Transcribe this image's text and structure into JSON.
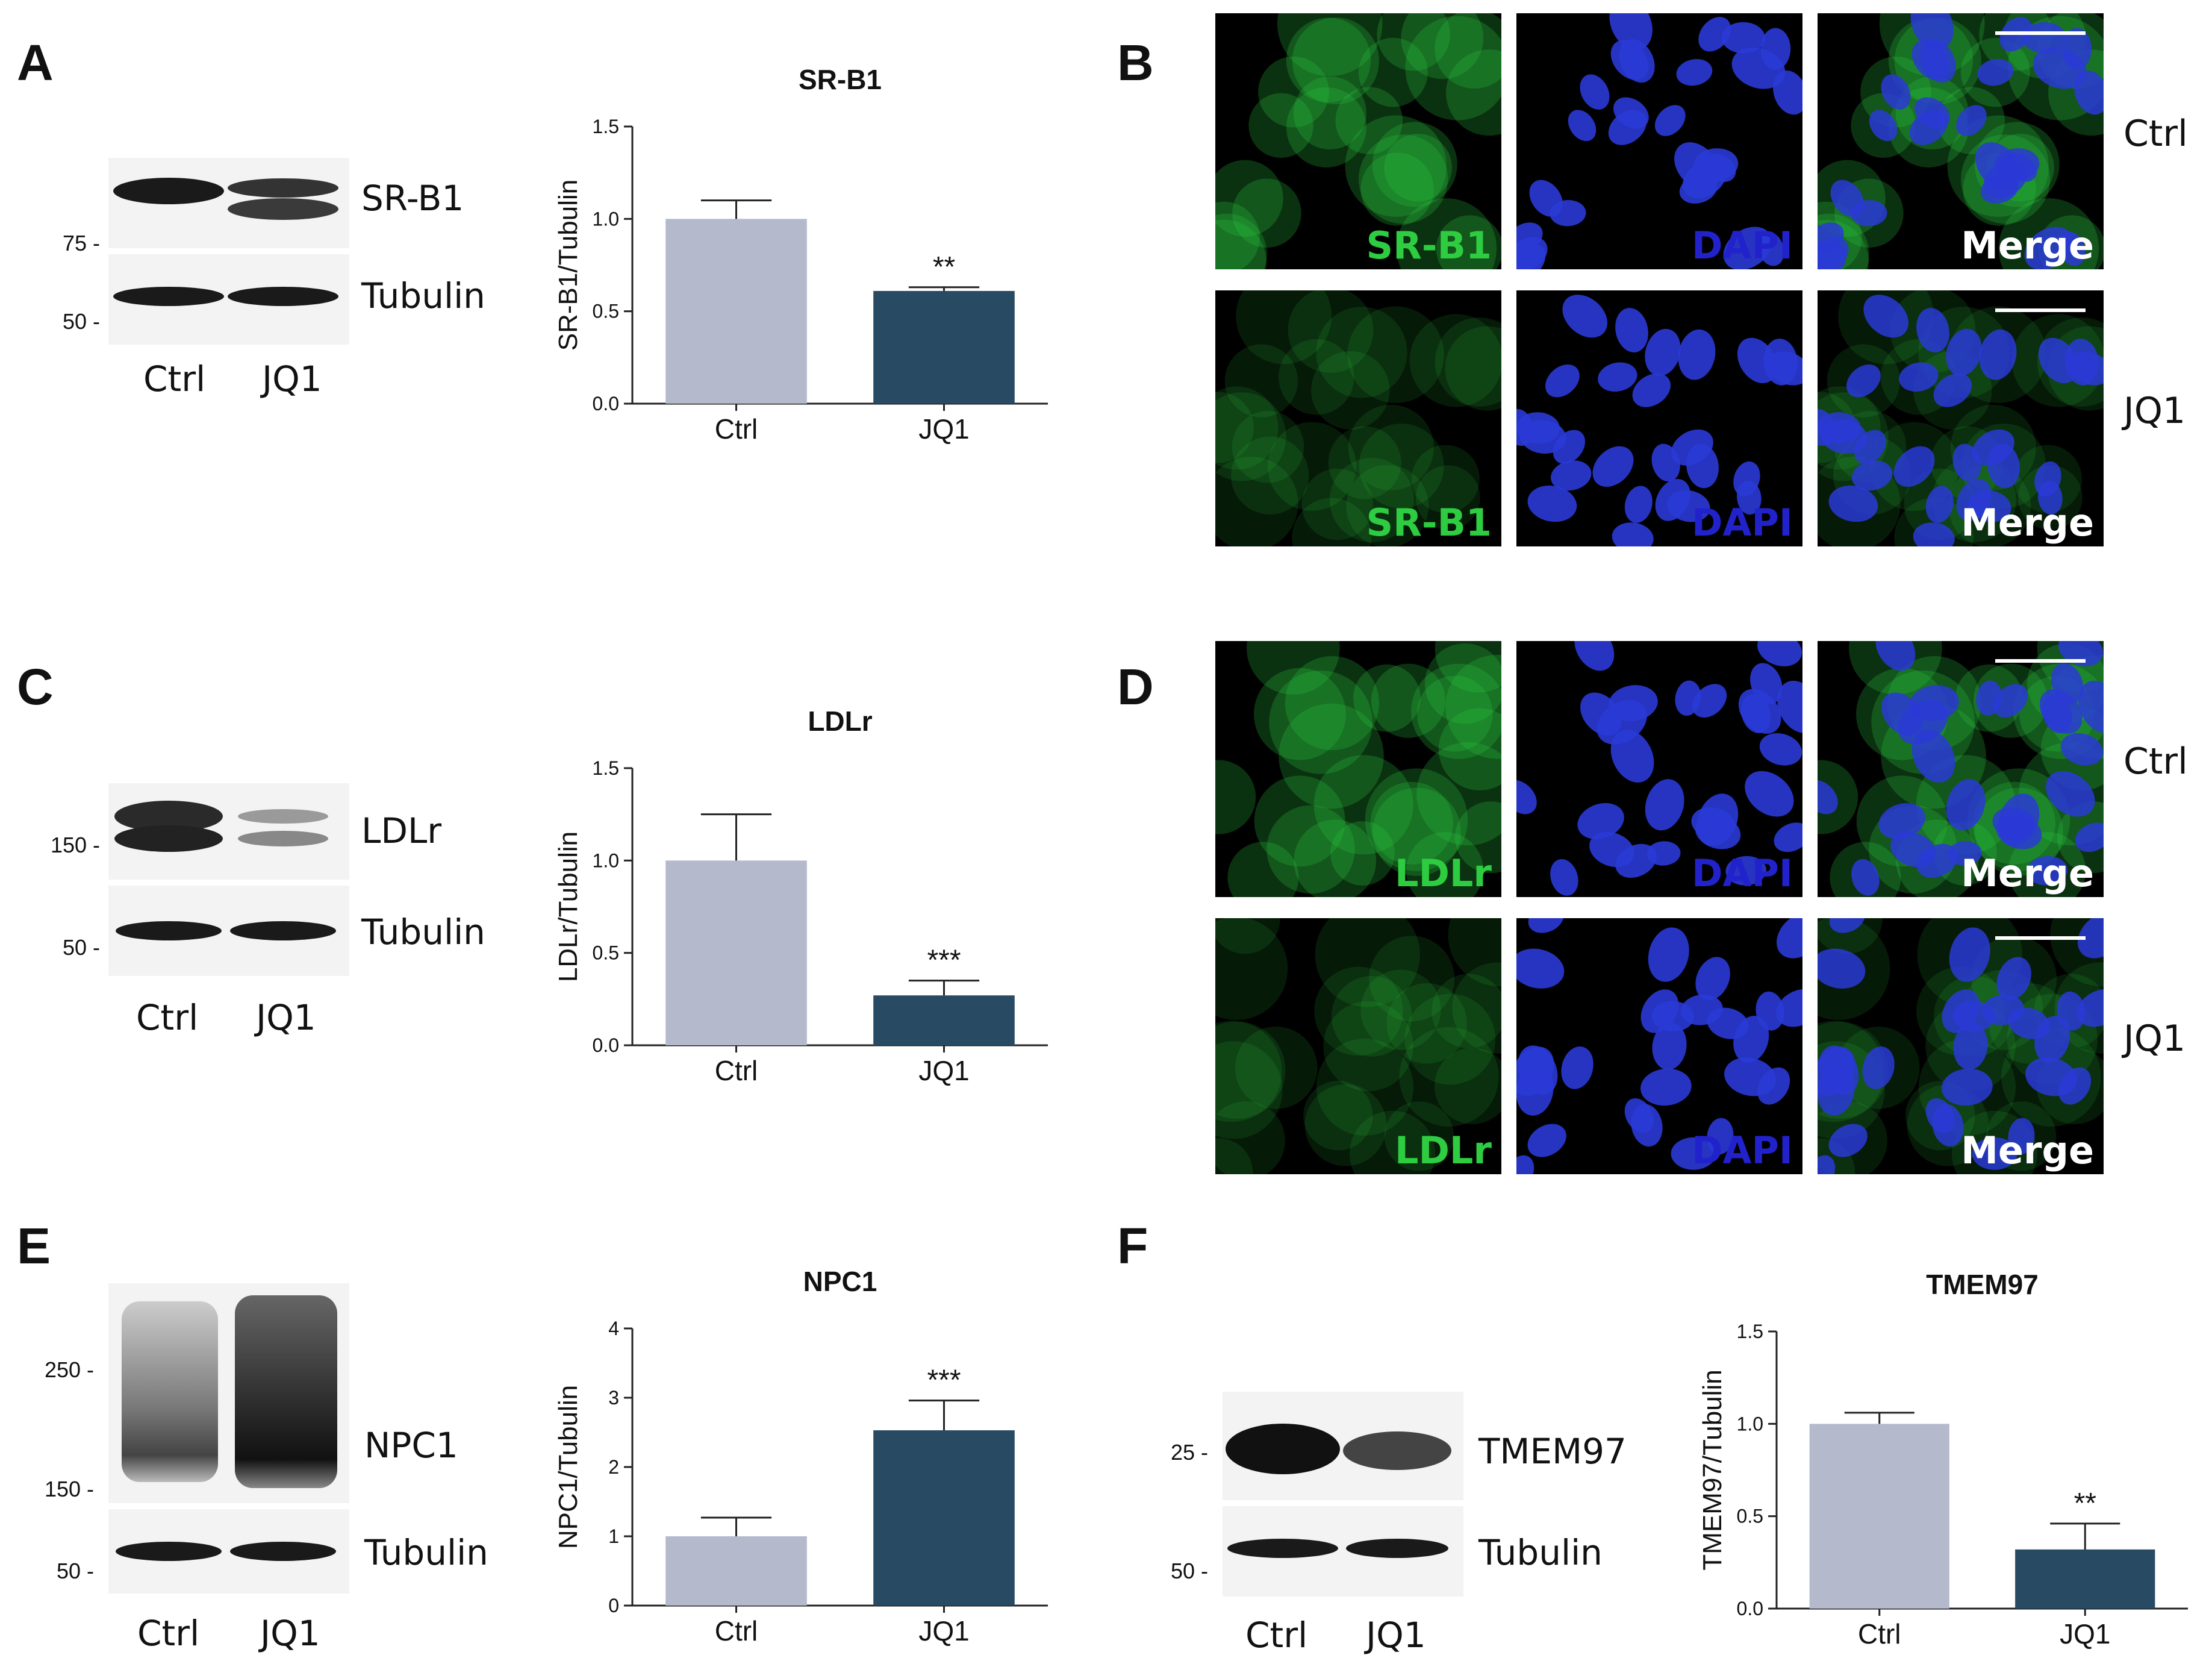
{
  "panels": {
    "A": "A",
    "B": "B",
    "C": "C",
    "D": "D",
    "E": "E",
    "F": "F"
  },
  "lanes": [
    "Ctrl",
    "JQ1"
  ],
  "blot_A": {
    "target": "SR-B1",
    "loading": "Tubulin",
    "mw": [
      "75 -",
      "50 -"
    ]
  },
  "blot_C": {
    "target": "LDLr",
    "loading": "Tubulin",
    "mw": [
      "150 -",
      "50 -"
    ]
  },
  "blot_E": {
    "target": "NPC1",
    "loading": "Tubulin",
    "mw": [
      "250 -",
      "150 -",
      "50 -"
    ]
  },
  "blot_F": {
    "target": "TMEM97",
    "loading": "Tubulin",
    "mw": [
      "25 -",
      "50 -"
    ]
  },
  "micro_B": {
    "rows": [
      "Ctrl",
      "JQ1"
    ],
    "channels": [
      "SR-B1",
      "DAPI",
      "Merge"
    ],
    "colors": {
      "target": "#2ecc40",
      "dapi": "#2222cc",
      "merge": "#ffffff"
    }
  },
  "micro_D": {
    "rows": [
      "Ctrl",
      "JQ1"
    ],
    "channels": [
      "LDLr",
      "DAPI",
      "Merge"
    ],
    "colors": {
      "target": "#2ecc40",
      "dapi": "#2222cc",
      "merge": "#ffffff"
    }
  },
  "colors": {
    "ctrl_bar": "#b5b9cc",
    "jq1_bar": "#284a63",
    "axis": "#222222"
  },
  "chart_data": [
    {
      "type": "bar",
      "title": "SR-B1",
      "ylabel": "SR-B1/Tubulin",
      "categories": [
        "Ctrl",
        "JQ1"
      ],
      "values": [
        1.0,
        0.61
      ],
      "errors": [
        0.1,
        0.02
      ],
      "significance": [
        "",
        "**"
      ],
      "ylim": [
        0,
        1.5
      ],
      "ticks": [
        0.0,
        0.5,
        1.0,
        1.5
      ],
      "tick_labels": [
        "0.0",
        "0.5",
        "1.0",
        "1.5"
      ]
    },
    {
      "type": "bar",
      "title": "LDLr",
      "ylabel": "LDLr/Tubulin",
      "categories": [
        "Ctrl",
        "JQ1"
      ],
      "values": [
        1.0,
        0.27
      ],
      "errors": [
        0.25,
        0.08
      ],
      "significance": [
        "",
        "***"
      ],
      "ylim": [
        0,
        1.5
      ],
      "ticks": [
        0.0,
        0.5,
        1.0,
        1.5
      ],
      "tick_labels": [
        "0.0",
        "0.5",
        "1.0",
        "1.5"
      ]
    },
    {
      "type": "bar",
      "title": "NPC1",
      "ylabel": "NPC1/Tubulin",
      "categories": [
        "Ctrl",
        "JQ1"
      ],
      "values": [
        1.0,
        2.53
      ],
      "errors": [
        0.27,
        0.43
      ],
      "significance": [
        "",
        "***"
      ],
      "ylim": [
        0,
        4
      ],
      "ticks": [
        0,
        1,
        2,
        3,
        4
      ],
      "tick_labels": [
        "0",
        "1",
        "2",
        "3",
        "4"
      ]
    },
    {
      "type": "bar",
      "title": "TMEM97",
      "ylabel": "TMEM97/Tubulin",
      "categories": [
        "Ctrl",
        "JQ1"
      ],
      "values": [
        1.0,
        0.32
      ],
      "errors": [
        0.06,
        0.14
      ],
      "significance": [
        "",
        "**"
      ],
      "ylim": [
        0,
        1.5
      ],
      "ticks": [
        0.0,
        0.5,
        1.0,
        1.5
      ],
      "tick_labels": [
        "0.0",
        "0.5",
        "1.0",
        "1.5"
      ]
    }
  ]
}
